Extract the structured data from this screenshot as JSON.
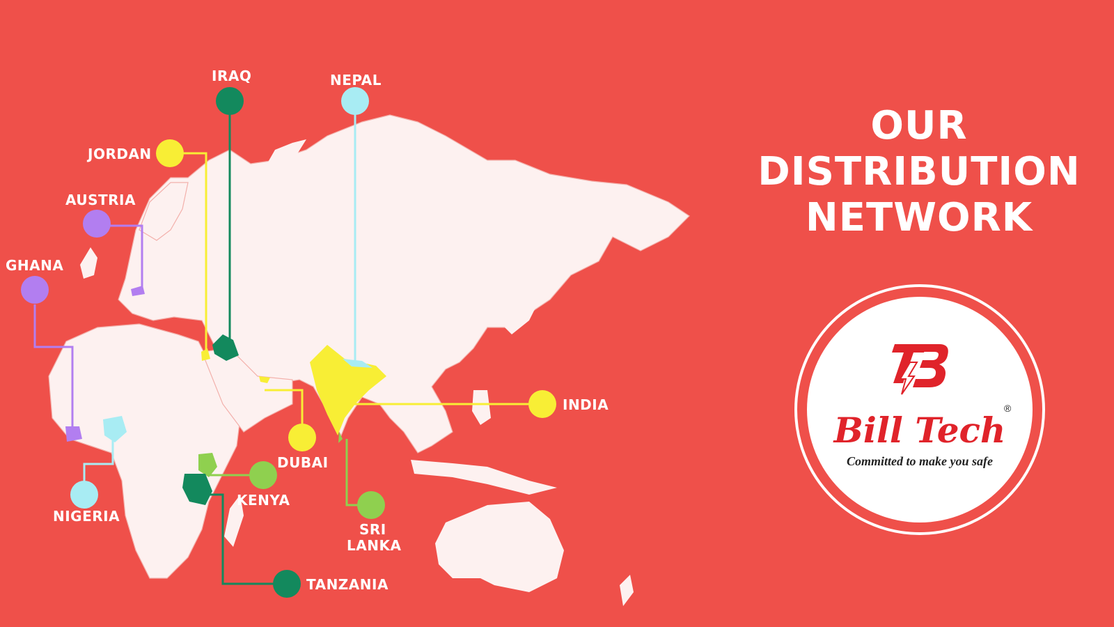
{
  "heading": {
    "line1": "OUR",
    "line2": "DISTRIBUTION",
    "line3": "NETWORK"
  },
  "logo": {
    "brand": "Bill Tech",
    "registered": "®",
    "tagline": "Committed to make you safe",
    "monogram": "TB"
  },
  "colors": {
    "background": "#ef504a",
    "land": "#fdf1f0",
    "yellow": "#f8ee35",
    "darkgreen": "#13895d",
    "lightblue": "#a8ecf3",
    "purple": "#b27ef0",
    "lightgreen": "#8fd04f"
  },
  "map": {
    "countries": [
      {
        "name": "IRAQ",
        "color": "darkgreen"
      },
      {
        "name": "NEPAL",
        "color": "lightblue"
      },
      {
        "name": "JORDAN",
        "color": "yellow"
      },
      {
        "name": "AUSTRIA",
        "color": "purple"
      },
      {
        "name": "GHANA",
        "color": "purple"
      },
      {
        "name": "NIGERIA",
        "color": "lightblue"
      },
      {
        "name": "KENYA",
        "color": "lightgreen"
      },
      {
        "name": "TANZANIA",
        "color": "darkgreen"
      },
      {
        "name": "DUBAI",
        "color": "yellow"
      },
      {
        "name": "SRI",
        "name2": "LANKA",
        "color": "lightgreen"
      },
      {
        "name": "INDIA",
        "color": "yellow"
      }
    ]
  }
}
